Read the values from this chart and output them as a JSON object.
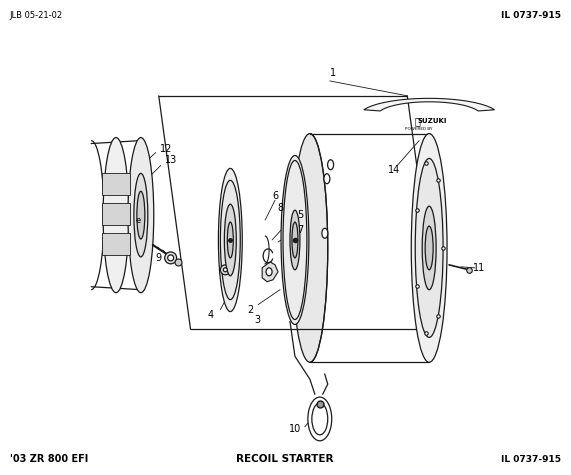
{
  "title_top_left": "JLB 05-21-02",
  "title_top_right": "IL 0737-915",
  "title_bottom_left": "'03 ZR 800 EFI",
  "title_bottom_center": "RECOIL STARTER",
  "title_bottom_right": "IL 0737-915",
  "background_color": "#ffffff",
  "line_color": "#1a1a1a",
  "text_color": "#000000",
  "fig_width": 5.71,
  "fig_height": 4.75,
  "dpi": 100
}
